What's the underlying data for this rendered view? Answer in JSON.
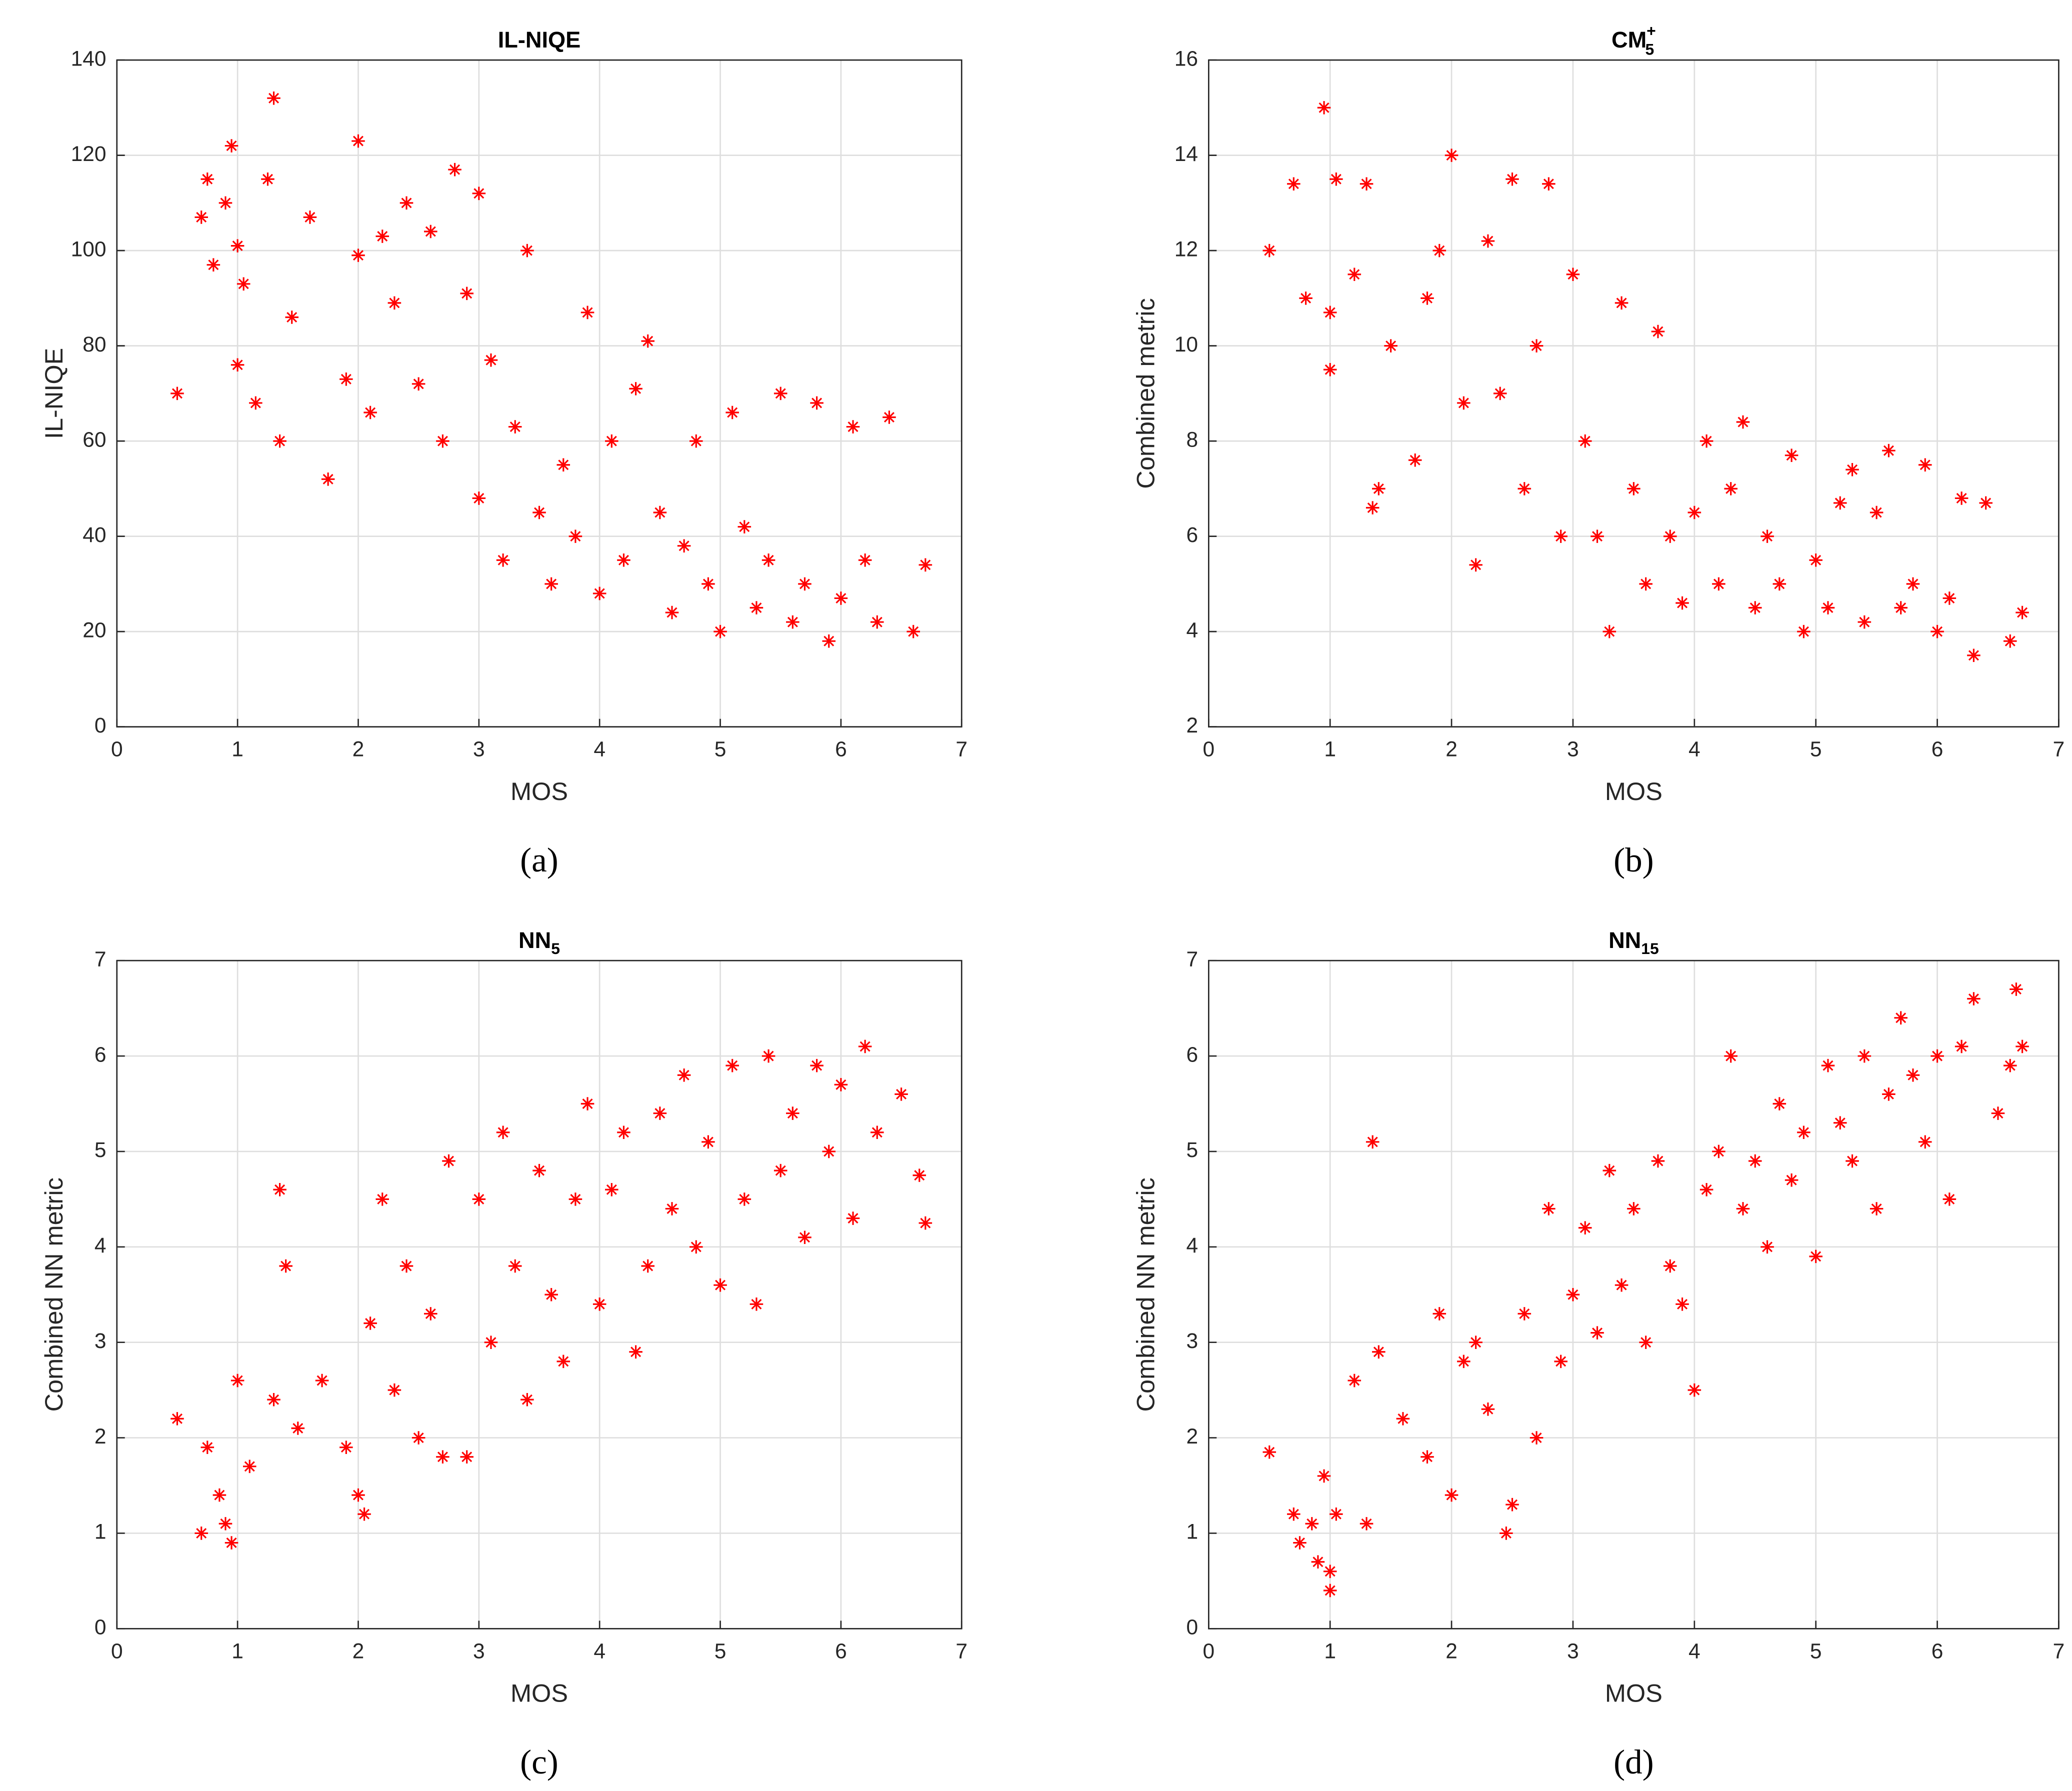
{
  "chart_data": [
    {
      "type": "scatter",
      "title": "IL-NIQE",
      "xlabel": "MOS",
      "ylabel": "IL-NIQE",
      "caption": "(a)",
      "color": "#ff0000",
      "grid": true,
      "xlim": [
        0,
        7
      ],
      "ylim": [
        0,
        140
      ],
      "xticks": [
        0,
        1,
        2,
        3,
        4,
        5,
        6,
        7
      ],
      "yticks": [
        0,
        20,
        40,
        60,
        80,
        100,
        120,
        140
      ],
      "x": [
        0.5,
        0.7,
        0.75,
        0.8,
        0.9,
        0.95,
        1.0,
        1.0,
        1.05,
        1.15,
        1.25,
        1.3,
        1.35,
        1.45,
        1.6,
        1.75,
        1.9,
        2.0,
        2.0,
        2.1,
        2.2,
        2.3,
        2.4,
        2.5,
        2.6,
        2.7,
        2.8,
        2.9,
        3.0,
        3.0,
        3.1,
        3.2,
        3.3,
        3.4,
        3.5,
        3.6,
        3.7,
        3.8,
        3.9,
        4.0,
        4.1,
        4.2,
        4.3,
        4.4,
        4.5,
        4.6,
        4.7,
        4.8,
        4.9,
        5.0,
        5.1,
        5.2,
        5.3,
        5.4,
        5.5,
        5.6,
        5.7,
        5.8,
        5.9,
        6.0,
        6.1,
        6.2,
        6.3,
        6.4,
        6.6,
        6.7
      ],
      "values": [
        70,
        107,
        115,
        97,
        110,
        122,
        101,
        76,
        93,
        68,
        115,
        132,
        60,
        86,
        107,
        52,
        73,
        123,
        99,
        66,
        103,
        89,
        110,
        72,
        104,
        60,
        117,
        91,
        112,
        48,
        77,
        35,
        63,
        100,
        45,
        30,
        55,
        40,
        87,
        28,
        60,
        35,
        71,
        81,
        45,
        24,
        38,
        60,
        30,
        20,
        66,
        42,
        25,
        35,
        70,
        22,
        30,
        68,
        18,
        27,
        63,
        35,
        22,
        65,
        20,
        34
      ]
    },
    {
      "type": "scatter",
      "title": "CM",
      "title_subscript": "5",
      "title_superscript": "+",
      "xlabel": "MOS",
      "ylabel": "Combined metric",
      "caption": "(b)",
      "color": "#ff0000",
      "grid": true,
      "xlim": [
        0,
        7
      ],
      "ylim": [
        2,
        16
      ],
      "xticks": [
        0,
        1,
        2,
        3,
        4,
        5,
        6,
        7
      ],
      "yticks": [
        2,
        4,
        6,
        8,
        10,
        12,
        14,
        16
      ],
      "x": [
        0.5,
        0.7,
        0.8,
        0.95,
        1.0,
        1.0,
        1.05,
        1.2,
        1.3,
        1.35,
        1.4,
        1.5,
        1.7,
        1.8,
        1.9,
        2.0,
        2.1,
        2.2,
        2.3,
        2.4,
        2.5,
        2.6,
        2.7,
        2.8,
        2.9,
        3.0,
        3.1,
        3.2,
        3.3,
        3.4,
        3.5,
        3.6,
        3.7,
        3.8,
        3.9,
        4.0,
        4.1,
        4.2,
        4.3,
        4.4,
        4.5,
        4.6,
        4.7,
        4.8,
        4.9,
        5.0,
        5.1,
        5.2,
        5.3,
        5.4,
        5.5,
        5.6,
        5.7,
        5.8,
        5.9,
        6.0,
        6.1,
        6.2,
        6.3,
        6.4,
        6.6,
        6.7
      ],
      "values": [
        12,
        13.4,
        11,
        15,
        9.5,
        10.7,
        13.5,
        11.5,
        13.4,
        6.6,
        7,
        10,
        7.6,
        11,
        12,
        14,
        8.8,
        5.4,
        12.2,
        9,
        13.5,
        7,
        10,
        13.4,
        6,
        11.5,
        8,
        6,
        4,
        10.9,
        7,
        5,
        10.3,
        6,
        4.6,
        6.5,
        8,
        5,
        7,
        8.4,
        4.5,
        6,
        5,
        7.7,
        4,
        5.5,
        4.5,
        6.7,
        7.4,
        4.2,
        6.5,
        7.8,
        4.5,
        5,
        7.5,
        4,
        4.7,
        6.8,
        3.5,
        6.7,
        3.8,
        4.4
      ]
    },
    {
      "type": "scatter",
      "title": "NN",
      "title_subscript": "5",
      "xlabel": "MOS",
      "ylabel": "Combined NN metric",
      "caption": "(c)",
      "color": "#ff0000",
      "grid": true,
      "xlim": [
        0,
        7
      ],
      "ylim": [
        0,
        7
      ],
      "xticks": [
        0,
        1,
        2,
        3,
        4,
        5,
        6,
        7
      ],
      "yticks": [
        0,
        1,
        2,
        3,
        4,
        5,
        6,
        7
      ],
      "x": [
        0.5,
        0.7,
        0.75,
        0.85,
        0.9,
        0.95,
        1.0,
        1.1,
        1.3,
        1.35,
        1.4,
        1.5,
        1.7,
        1.9,
        2.0,
        2.05,
        2.1,
        2.2,
        2.3,
        2.4,
        2.5,
        2.6,
        2.7,
        2.75,
        2.9,
        3.0,
        3.1,
        3.2,
        3.3,
        3.4,
        3.5,
        3.6,
        3.7,
        3.8,
        3.9,
        4.0,
        4.1,
        4.2,
        4.3,
        4.4,
        4.5,
        4.6,
        4.7,
        4.8,
        4.9,
        5.0,
        5.1,
        5.2,
        5.3,
        5.4,
        5.5,
        5.6,
        5.7,
        5.8,
        5.9,
        6.0,
        6.1,
        6.2,
        6.3,
        6.5,
        6.65,
        6.7
      ],
      "values": [
        2.2,
        1.0,
        1.9,
        1.4,
        1.1,
        0.9,
        2.6,
        1.7,
        2.4,
        4.6,
        3.8,
        2.1,
        2.6,
        1.9,
        1.4,
        1.2,
        3.2,
        4.5,
        2.5,
        3.8,
        2.0,
        3.3,
        1.8,
        4.9,
        1.8,
        4.5,
        3.0,
        5.2,
        3.8,
        2.4,
        4.8,
        3.5,
        2.8,
        4.5,
        5.5,
        3.4,
        4.6,
        5.2,
        2.9,
        3.8,
        5.4,
        4.4,
        5.8,
        4.0,
        5.1,
        3.6,
        5.9,
        4.5,
        3.4,
        6.0,
        4.8,
        5.4,
        4.1,
        5.9,
        5.0,
        5.7,
        4.3,
        6.1,
        5.2,
        5.6,
        4.75,
        4.25
      ]
    },
    {
      "type": "scatter",
      "title": "NN",
      "title_subscript": "15",
      "xlabel": "MOS",
      "ylabel": "Combined NN metric",
      "caption": "(d)",
      "color": "#ff0000",
      "grid": true,
      "xlim": [
        0,
        7
      ],
      "ylim": [
        0,
        7
      ],
      "xticks": [
        0,
        1,
        2,
        3,
        4,
        5,
        6,
        7
      ],
      "yticks": [
        0,
        1,
        2,
        3,
        4,
        5,
        6,
        7
      ],
      "x": [
        0.5,
        0.7,
        0.75,
        0.85,
        0.9,
        0.95,
        1.0,
        1.0,
        1.05,
        1.2,
        1.3,
        1.35,
        1.4,
        1.6,
        1.8,
        1.9,
        2.0,
        2.1,
        2.2,
        2.3,
        2.45,
        2.5,
        2.6,
        2.7,
        2.8,
        2.9,
        3.0,
        3.1,
        3.2,
        3.3,
        3.4,
        3.5,
        3.6,
        3.7,
        3.8,
        3.9,
        4.0,
        4.1,
        4.2,
        4.3,
        4.4,
        4.5,
        4.6,
        4.7,
        4.8,
        4.9,
        5.0,
        5.1,
        5.2,
        5.3,
        5.4,
        5.5,
        5.6,
        5.7,
        5.8,
        5.9,
        6.0,
        6.1,
        6.2,
        6.3,
        6.5,
        6.6,
        6.65,
        6.7
      ],
      "values": [
        1.85,
        1.2,
        0.9,
        1.1,
        0.7,
        1.6,
        0.4,
        0.6,
        1.2,
        2.6,
        1.1,
        5.1,
        2.9,
        2.2,
        1.8,
        3.3,
        1.4,
        2.8,
        3.0,
        2.3,
        1.0,
        1.3,
        3.3,
        2.0,
        4.4,
        2.8,
        3.5,
        4.2,
        3.1,
        4.8,
        3.6,
        4.4,
        3.0,
        4.9,
        3.8,
        3.4,
        2.5,
        4.6,
        5.0,
        6.0,
        4.4,
        4.9,
        4.0,
        5.5,
        4.7,
        5.2,
        3.9,
        5.9,
        5.3,
        4.9,
        6.0,
        4.4,
        5.6,
        6.4,
        5.8,
        5.1,
        6.0,
        4.5,
        6.1,
        6.6,
        5.4,
        5.9,
        6.7,
        6.1
      ]
    }
  ]
}
